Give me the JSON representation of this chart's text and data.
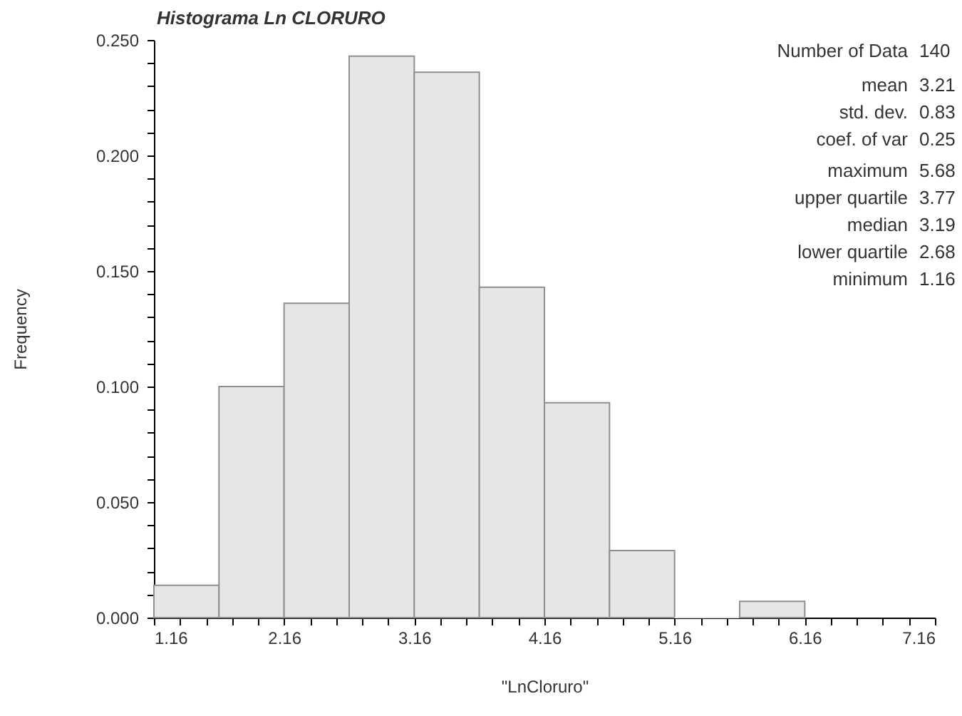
{
  "chart_data": {
    "type": "histogram",
    "title": "Histograma Ln CLORURO",
    "xlabel": "\"LnCloruro\"",
    "ylabel": "Frequency",
    "bins": [
      1.16,
      1.66,
      2.16,
      2.66,
      3.16,
      3.66,
      4.16,
      4.66,
      5.16,
      5.66,
      6.16
    ],
    "values": [
      0.014,
      0.1,
      0.136,
      0.243,
      0.236,
      0.143,
      0.093,
      0.029,
      0,
      0.007
    ],
    "color": "#e6e6e6",
    "xlim": [
      1.16,
      7.16
    ],
    "xticks": [
      1.16,
      {
        "value": 1.36,
        "label": null
      },
      {
        "value": 1.56,
        "label": null
      },
      {
        "value": 1.76,
        "label": null
      },
      {
        "value": 1.96,
        "label": null
      },
      2.16,
      {
        "value": 2.36,
        "label": null
      },
      {
        "value": 2.56,
        "label": null
      },
      {
        "value": 2.76,
        "label": null
      },
      {
        "value": 2.96,
        "label": null
      },
      3.16,
      {
        "value": 3.36,
        "label": null
      },
      {
        "value": 3.56,
        "label": null
      },
      {
        "value": 3.76,
        "label": null
      },
      {
        "value": 3.96,
        "label": null
      },
      4.16,
      {
        "value": 4.36,
        "label": null
      },
      {
        "value": 4.56,
        "label": null
      },
      {
        "value": 4.76,
        "label": null
      },
      {
        "value": 4.96,
        "label": null
      },
      5.16,
      {
        "value": 5.36,
        "label": null
      },
      {
        "value": 5.56,
        "label": null
      },
      {
        "value": 5.76,
        "label": null
      },
      {
        "value": 5.96,
        "label": null
      },
      6.16,
      {
        "value": 6.36,
        "label": null
      },
      {
        "value": 6.56,
        "label": null
      },
      {
        "value": 6.76,
        "label": null
      },
      {
        "value": 6.96,
        "label": null
      },
      7.16
    ],
    "ylim": [
      0,
      0.25
    ],
    "yticks": [
      {
        "value": 0,
        "label": "0.000"
      },
      {
        "value": 0.01,
        "label": null
      },
      {
        "value": 0.02,
        "label": null
      },
      {
        "value": 0.03,
        "label": null
      },
      {
        "value": 0.04,
        "label": null
      },
      {
        "value": 0.05,
        "label": "0.050"
      },
      {
        "value": 0.06,
        "label": null
      },
      {
        "value": 0.07,
        "label": null
      },
      {
        "value": 0.08,
        "label": null
      },
      {
        "value": 0.09,
        "label": null
      },
      {
        "value": 0.1,
        "label": "0.100"
      },
      {
        "value": 0.11,
        "label": null
      },
      {
        "value": 0.12,
        "label": null
      },
      {
        "value": 0.13,
        "label": null
      },
      {
        "value": 0.14,
        "label": null
      },
      {
        "value": 0.15,
        "label": "0.150"
      },
      {
        "value": 0.16,
        "label": null
      },
      {
        "value": 0.17,
        "label": null
      },
      {
        "value": 0.18,
        "label": null
      },
      {
        "value": 0.19,
        "label": null
      },
      {
        "value": 0.2,
        "label": "0.200"
      },
      {
        "value": 0.21,
        "label": null
      },
      {
        "value": 0.22,
        "label": null
      },
      {
        "value": 0.23,
        "label": null
      },
      {
        "value": 0.24,
        "label": null
      },
      {
        "value": 0.25,
        "label": "0.250"
      }
    ],
    "annotations": [
      "Number of Data 140",
      "mean 3.21",
      "std. dev. 0.83",
      "coef. of var 0.25",
      "maximum 5.68",
      "upper quartile 3.77",
      "median 3.19",
      "lower quartile 2.68",
      "minimum 1.16"
    ]
  }
}
